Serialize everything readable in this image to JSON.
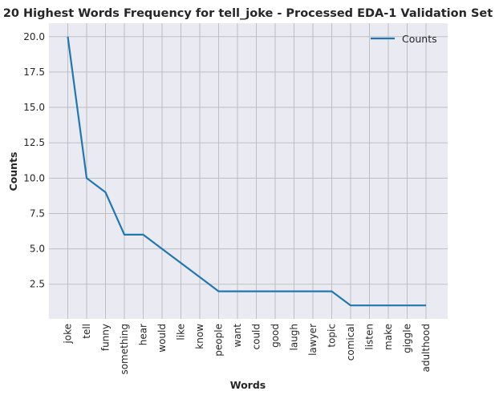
{
  "chart_data": {
    "type": "line",
    "title": "20 Highest Words Frequency for tell_joke - Processed EDA-1 Validation Set",
    "xlabel": "Words",
    "ylabel": "Counts",
    "categories": [
      "joke",
      "tell",
      "funny",
      "something",
      "hear",
      "would",
      "like",
      "know",
      "people",
      "want",
      "could",
      "good",
      "laugh",
      "lawyer",
      "topic",
      "comical",
      "listen",
      "make",
      "giggle",
      "adulthood"
    ],
    "series": [
      {
        "name": "Counts",
        "values": [
          20,
          10,
          9,
          6,
          6,
          5,
          4,
          3,
          2,
          2,
          2,
          2,
          2,
          2,
          2,
          1,
          1,
          1,
          1,
          1
        ]
      }
    ],
    "yticks": [
      "2.5",
      "5.0",
      "7.5",
      "10.0",
      "12.5",
      "15.0",
      "17.5",
      "20.0"
    ],
    "ylim": [
      0.05,
      20.95
    ],
    "grid": true,
    "legend_position": "top-right",
    "colors": {
      "line": "#1f77b4",
      "background": "#eaeaf2",
      "grid": "#bfbfbf"
    }
  }
}
